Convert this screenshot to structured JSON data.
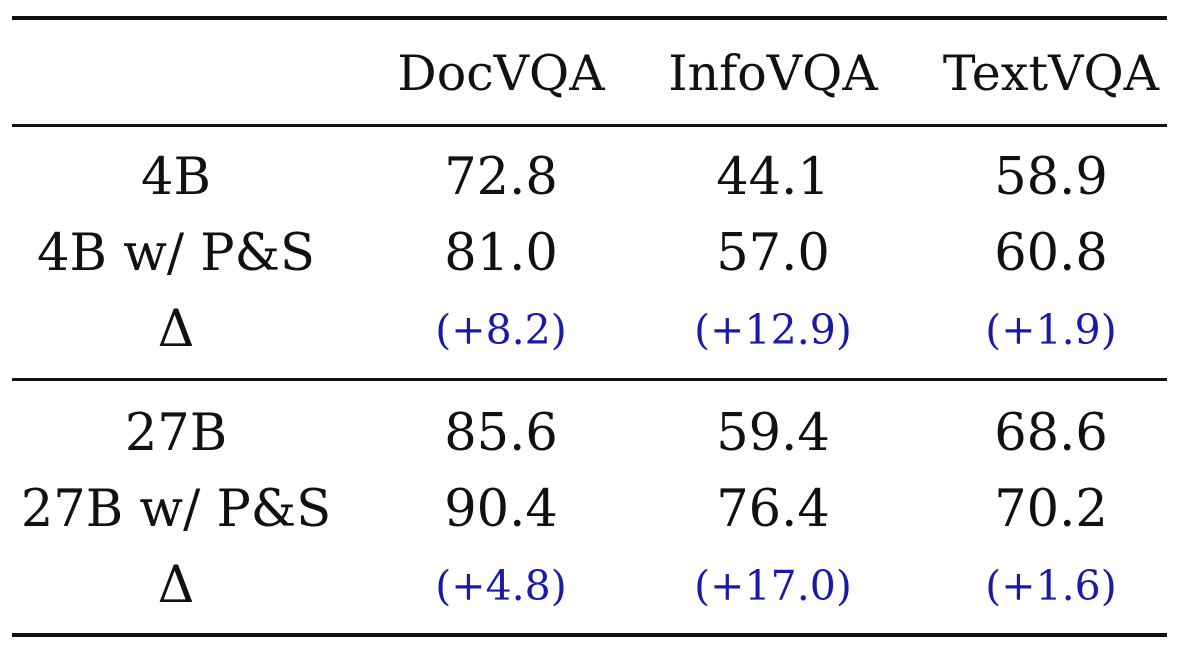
{
  "table": {
    "columns": [
      "",
      "DocVQA",
      "InfoVQA",
      "TextVQA"
    ],
    "groups": [
      {
        "rows": [
          {
            "label": "4B",
            "values": [
              "72.8",
              "44.1",
              "58.9"
            ]
          },
          {
            "label": "4B w/ P&S",
            "values": [
              "81.0",
              "57.0",
              "60.8"
            ]
          },
          {
            "label": "Δ",
            "values": [
              "(+8.2)",
              "(+12.9)",
              "(+1.9)"
            ],
            "is_delta": true
          }
        ]
      },
      {
        "rows": [
          {
            "label": "27B",
            "values": [
              "85.6",
              "59.4",
              "68.6"
            ]
          },
          {
            "label": "27B w/ P&S",
            "values": [
              "90.4",
              "76.4",
              "70.2"
            ]
          },
          {
            "label": "Δ",
            "values": [
              "(+4.8)",
              "(+17.0)",
              "(+1.6)"
            ],
            "is_delta": true
          }
        ]
      }
    ],
    "colors": {
      "text": "#111111",
      "delta": "#1a1aa6",
      "rule": "#111111"
    }
  }
}
